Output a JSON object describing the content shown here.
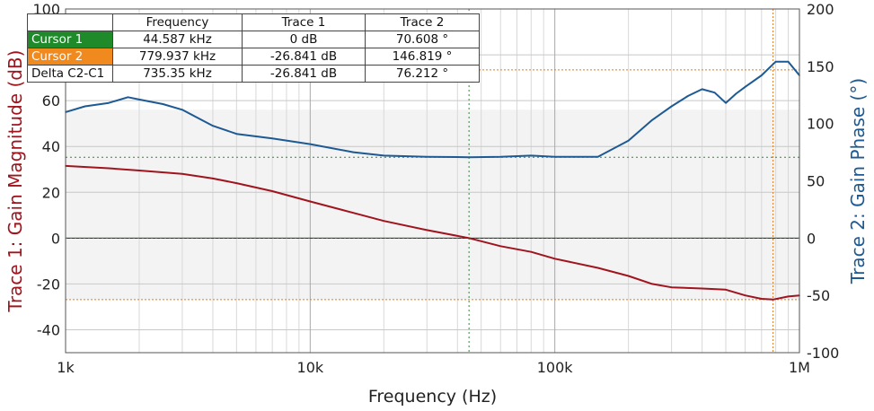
{
  "chart_data": {
    "type": "line",
    "xlabel": "Frequency (Hz)",
    "ylabel_left": "Trace 1: Gain Magnitude (dB)",
    "ylabel_right": "Trace 2: Gain Phase (°)",
    "x_scale": "log",
    "xlim": [
      1000,
      1000000
    ],
    "ylim_left": [
      -50,
      100
    ],
    "ylim_right": [
      -100,
      200
    ],
    "x_ticks": [
      {
        "value": 1000,
        "label": "1k"
      },
      {
        "value": 10000,
        "label": "10k"
      },
      {
        "value": 100000,
        "label": "100k"
      },
      {
        "value": 1000000,
        "label": "1M"
      }
    ],
    "y_ticks_left": [
      {
        "value": 100,
        "label": "100"
      },
      {
        "value": 60,
        "label": "60"
      },
      {
        "value": 40,
        "label": "40"
      },
      {
        "value": 20,
        "label": "20"
      },
      {
        "value": 0,
        "label": "0"
      },
      {
        "value": -20,
        "label": "-20"
      },
      {
        "value": -40,
        "label": "-40"
      }
    ],
    "y_ticks_right": [
      {
        "value": 200,
        "label": "200"
      },
      {
        "value": 150,
        "label": "150"
      },
      {
        "value": 100,
        "label": "100"
      },
      {
        "value": 50,
        "label": "50"
      },
      {
        "value": 0,
        "label": "0"
      },
      {
        "value": -50,
        "label": "-50"
      },
      {
        "value": -100,
        "label": "-100"
      }
    ],
    "grid": true,
    "series": [
      {
        "name": "Trace 1",
        "axis": "left",
        "color": "#a0141e",
        "x": [
          1000,
          1500,
          2000,
          3000,
          4000,
          5000,
          7000,
          10000,
          15000,
          20000,
          30000,
          44587,
          60000,
          80000,
          100000,
          150000,
          200000,
          250000,
          300000,
          400000,
          500000,
          600000,
          700000,
          779937,
          900000,
          1000000
        ],
        "y": [
          31.5,
          30.5,
          29.5,
          28,
          26,
          24,
          20.5,
          16,
          11,
          7.5,
          3.5,
          0,
          -3.5,
          -6,
          -9,
          -13,
          -16.5,
          -20,
          -21.5,
          -22,
          -22.5,
          -25,
          -26.5,
          -26.8,
          -25.5,
          -25
        ]
      },
      {
        "name": "Trace 2",
        "axis": "right",
        "color": "#1d5a93",
        "x": [
          1000,
          1200,
          1500,
          1800,
          2000,
          2500,
          3000,
          4000,
          5000,
          7000,
          10000,
          15000,
          20000,
          30000,
          44587,
          60000,
          80000,
          100000,
          150000,
          200000,
          250000,
          300000,
          350000,
          400000,
          450000,
          500000,
          550000,
          600000,
          700000,
          800000,
          900000,
          1000000
        ],
        "y": [
          110,
          115,
          118,
          123,
          121,
          117,
          112,
          98,
          91,
          87,
          82,
          75,
          72,
          71,
          70.6,
          71,
          72,
          71,
          71,
          85,
          103,
          115,
          124,
          130,
          127,
          118,
          126,
          132,
          142,
          154,
          154,
          142
        ]
      }
    ],
    "cursors": {
      "cursor1_freq": 44587,
      "cursor2_freq": 779937,
      "trace1_c2": -26.841,
      "trace2_c1": 70.608,
      "trace2_c2": 146.819
    },
    "table": {
      "headers": [
        "",
        "Frequency",
        "Trace 1",
        "Trace 2"
      ],
      "rows": [
        {
          "label": "Cursor 1",
          "freq": "44.587 kHz",
          "t1": "0 dB",
          "t2": "70.608 °",
          "color": "#1e8a2a"
        },
        {
          "label": "Cursor 2",
          "freq": "779.937 kHz",
          "t1": "-26.841 dB",
          "t2": "146.819 °",
          "color": "#f08a1e"
        },
        {
          "label": "Delta C2-C1",
          "freq": "735.35 kHz",
          "t1": "-26.841 dB",
          "t2": "76.212 °",
          "color": "#ffffff"
        }
      ]
    }
  }
}
